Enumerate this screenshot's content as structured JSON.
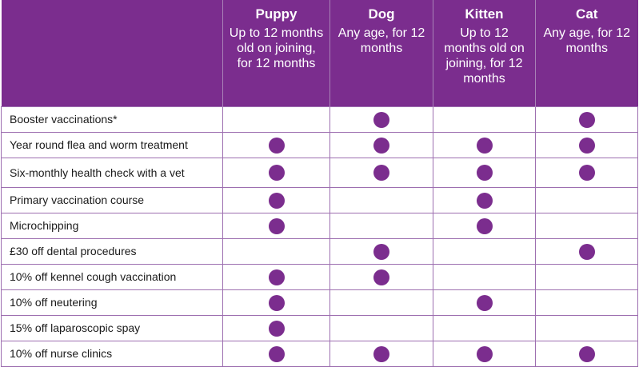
{
  "accent_color": "#7b2d8e",
  "columns": [
    {
      "name": "Puppy",
      "desc": "Up to 12 months old on joining, for 12 months"
    },
    {
      "name": "Dog",
      "desc": "Any age, for 12 months"
    },
    {
      "name": "Kitten",
      "desc": "Up to 12 months old on joining, for 12 months"
    },
    {
      "name": "Cat",
      "desc": "Any age, for 12 months"
    }
  ],
  "rows": [
    {
      "label": "Booster vaccinations*",
      "marks": [
        false,
        true,
        false,
        true
      ]
    },
    {
      "label": "Year round flea and worm treatment",
      "marks": [
        true,
        true,
        true,
        true
      ]
    },
    {
      "label": "Six-monthly health check with a vet",
      "marks": [
        true,
        true,
        true,
        true
      ]
    },
    {
      "label": "Primary vaccination course",
      "marks": [
        true,
        false,
        true,
        false
      ]
    },
    {
      "label": "Microchipping",
      "marks": [
        true,
        false,
        true,
        false
      ]
    },
    {
      "label": "£30 off dental procedures",
      "marks": [
        false,
        true,
        false,
        true
      ]
    },
    {
      "label": "10% off kennel cough vaccination",
      "marks": [
        true,
        true,
        false,
        false
      ]
    },
    {
      "label": "10% off neutering",
      "marks": [
        true,
        false,
        true,
        false
      ]
    },
    {
      "label": "15% off laparoscopic spay",
      "marks": [
        true,
        false,
        false,
        false
      ]
    },
    {
      "label": "10% off nurse clinics",
      "marks": [
        true,
        true,
        true,
        true
      ]
    }
  ]
}
